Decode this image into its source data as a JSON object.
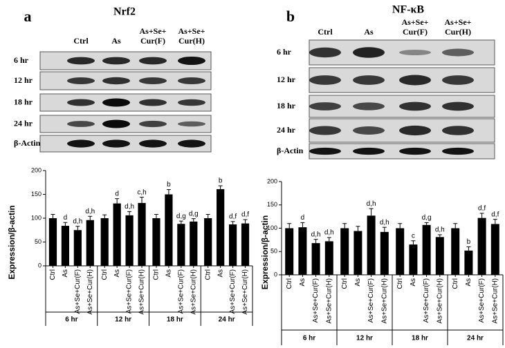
{
  "panels": [
    {
      "letter": "a",
      "title": "Nrf2",
      "lanes": [
        [
          "Ctrl"
        ],
        [
          "As"
        ],
        [
          "As+Se+",
          "Cur(F)"
        ],
        [
          "As+Se+",
          "Cur(H)"
        ]
      ],
      "rows": [
        "6 hr",
        "12 hr",
        "18 hr",
        "24 hr",
        "β-Actin"
      ]
    },
    {
      "letter": "b",
      "title": "NF-κB",
      "lanes": [
        [
          "Ctrl"
        ],
        [
          "As"
        ],
        [
          "As+Se+",
          "Cur(F)"
        ],
        [
          "As+Se+",
          "Cur(H)"
        ]
      ],
      "rows": [
        "6 hr",
        "12 hr",
        "18 hr",
        "24 hr",
        "β-Actin"
      ]
    }
  ],
  "chart_data": [
    {
      "type": "bar",
      "y_label": "Expression/β-actin",
      "color": "#000000",
      "groups": [
        "6 hr",
        "12 hr",
        "18 hr",
        "24 hr"
      ],
      "categories": [
        "Ctrl",
        "As",
        "As+Se+Cur(F)",
        "As+Se+Cur(H)",
        "Ctrl",
        "As",
        "As+Se+Cur(F)",
        "As+Se+Cur(H)",
        "Ctrl",
        "As",
        "As+Se+Cur(F)",
        "As+Se+Cur(H)",
        "Ctrl",
        "As",
        "As+Se+Cur(F)",
        "As+Se+Cur(H)"
      ],
      "values": [
        100,
        84,
        75,
        96,
        100,
        131,
        106,
        132,
        100,
        150,
        88,
        93,
        100,
        161,
        87,
        89
      ],
      "errors": [
        8,
        7,
        8,
        8,
        7,
        10,
        8,
        12,
        8,
        10,
        6,
        6,
        8,
        7,
        6,
        8
      ],
      "annotations": [
        null,
        "d",
        "d,h",
        "d,h",
        null,
        "d",
        "d,h",
        "c,h",
        null,
        "b",
        "d,g",
        "d,g",
        null,
        "b",
        "d,f",
        "d,f"
      ],
      "ylim": [
        0,
        200
      ],
      "yticks": [
        0,
        50,
        100,
        150,
        200
      ]
    },
    {
      "type": "bar",
      "y_label": "Expression/β-actin",
      "color": "#000000",
      "groups": [
        "6 hr",
        "12 hr",
        "18 hr",
        "24 hr"
      ],
      "categories": [
        "Ctrl",
        "As",
        "As+Se+Cur(F)",
        "As+Se+Cur(H)",
        "Ctrl",
        "As",
        "As+Se+Cur(F)",
        "As+Se+Cur(H)",
        "Ctrl",
        "As",
        "As+Se+Cur(F)",
        "As+Se+Cur(H)",
        "Ctrl",
        "As",
        "As+Se+Cur(F)",
        "As+Se+Cur(H)"
      ],
      "values": [
        100,
        102,
        68,
        72,
        100,
        94,
        127,
        92,
        100,
        65,
        107,
        81,
        100,
        52,
        122,
        109
      ],
      "errors": [
        10,
        10,
        8,
        8,
        10,
        10,
        15,
        10,
        10,
        8,
        5,
        5,
        10,
        8,
        10,
        10
      ],
      "annotations": [
        null,
        "d",
        "d,h",
        "d,h",
        null,
        null,
        "d,h",
        "d,h",
        null,
        "c",
        "d,g",
        "d,h",
        null,
        "b",
        "d,f",
        "d,f"
      ],
      "ylim": [
        0,
        200
      ],
      "yticks": [
        0,
        50,
        100,
        150,
        200
      ]
    }
  ]
}
